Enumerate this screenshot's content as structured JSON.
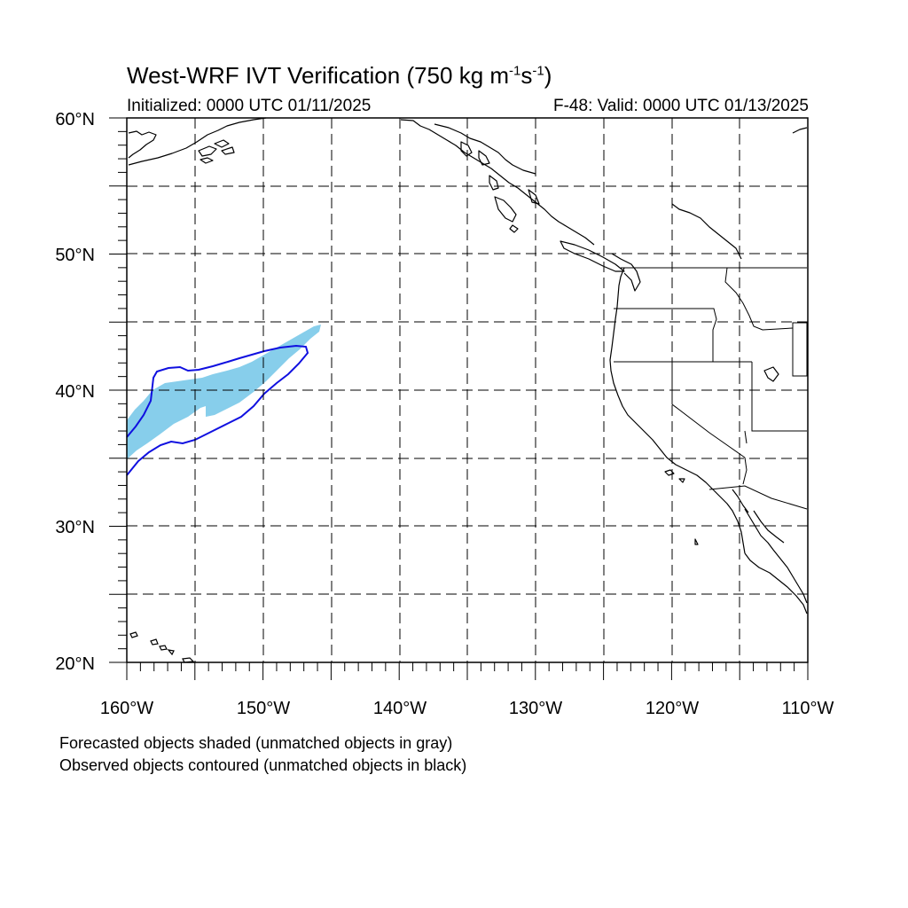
{
  "title": {
    "main": "West-WRF IVT Verification (750 kg m",
    "exp1": "-1",
    "mid": "s",
    "exp2": "-1",
    "end": ")"
  },
  "init_text": "Initialized: 0000 UTC 01/11/2025",
  "valid_text": "F-48: Valid: 0000 UTC 01/13/2025",
  "lat_labels": [
    "60°N",
    "50°N",
    "40°N",
    "30°N",
    "20°N"
  ],
  "lon_labels": [
    "160°W",
    "150°W",
    "140°W",
    "130°W",
    "120°W",
    "110°W"
  ],
  "notes": [
    "Forecasted objects shaded (unmatched objects in gray)",
    "Observed objects contoured (unmatched objects in black)"
  ],
  "colors": {
    "forecast_fill": "#87ceeb",
    "observed_contour": "#1010e0",
    "coastline": "#000000",
    "grid": "#000000"
  }
}
